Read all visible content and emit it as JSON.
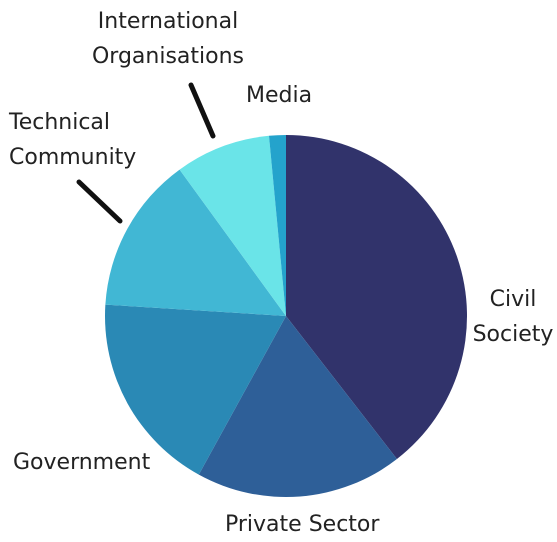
{
  "chart_data": {
    "type": "pie",
    "title": "",
    "legend": "none",
    "slices": [
      {
        "label": "Civil Society",
        "label_lines": [
          "Civil",
          "Society"
        ],
        "value": 39.5,
        "color": "#31336b"
      },
      {
        "label": "Private Sector",
        "label_lines": [
          "Private Sector"
        ],
        "value": 18.5,
        "color": "#2e5f98"
      },
      {
        "label": "Government",
        "label_lines": [
          "Government"
        ],
        "value": 18.0,
        "color": "#2a89b5"
      },
      {
        "label": "Technical Community",
        "label_lines": [
          "Technical",
          "Community"
        ],
        "value": 14.0,
        "color": "#41b7d4"
      },
      {
        "label": "International Organisations",
        "label_lines": [
          "International",
          "Organisations"
        ],
        "value": 8.5,
        "color": "#6ae4e8"
      },
      {
        "label": "Media",
        "label_lines": [
          "Media"
        ],
        "value": 1.5,
        "color": "#24a3cc"
      }
    ]
  }
}
